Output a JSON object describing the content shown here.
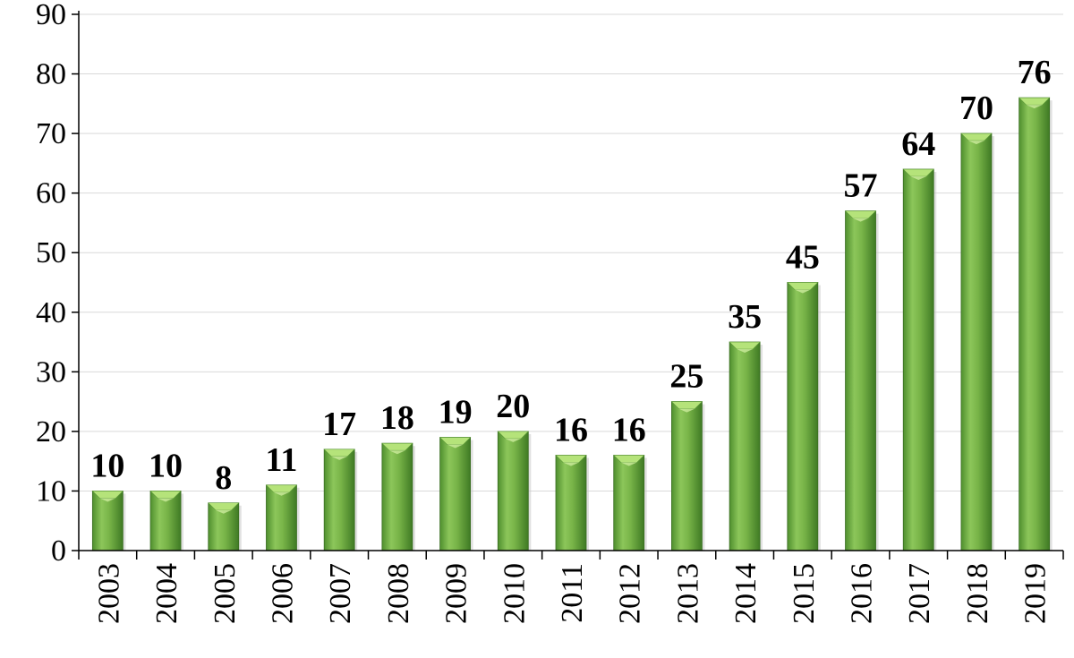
{
  "chart_data": {
    "type": "bar",
    "title": "",
    "xlabel": "",
    "ylabel": "",
    "categories": [
      "2003",
      "2004",
      "2005",
      "2006",
      "2007",
      "2008",
      "2009",
      "2010",
      "2011",
      "2012",
      "2013",
      "2014",
      "2015",
      "2016",
      "2017",
      "2018",
      "2019"
    ],
    "values": [
      10,
      10,
      8,
      11,
      17,
      18,
      19,
      20,
      16,
      16,
      25,
      35,
      45,
      57,
      64,
      70,
      76
    ],
    "ylim": [
      0,
      90
    ],
    "yticks": [
      0,
      10,
      20,
      30,
      40,
      50,
      60,
      70,
      80,
      90
    ],
    "grid": true,
    "data_labels": true,
    "legend": "none",
    "colors": {
      "bar_main": "#6aa84f",
      "bar_light": "#a8d870",
      "bar_dark": "#3f7a24",
      "bar_top": "#b5e37a",
      "grid": "#d9d9d9",
      "axis": "#000000"
    }
  }
}
